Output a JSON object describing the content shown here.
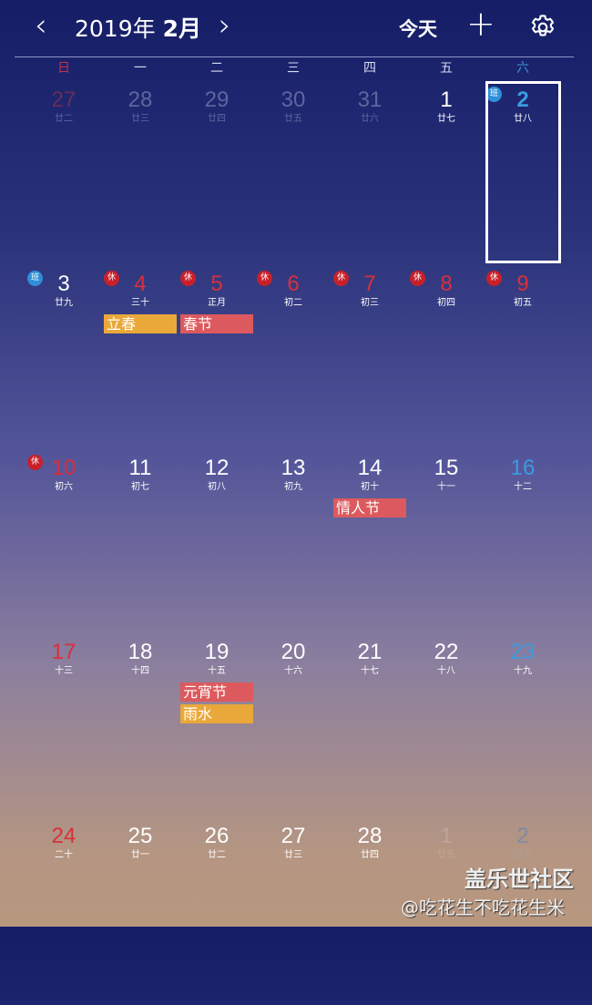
{
  "header": {
    "prev_icon": "chevron-left-icon",
    "year_text": "2019年",
    "month_text": "2月",
    "next_icon": "chevron-right-icon",
    "today_label": "今天",
    "add_icon": "plus-icon",
    "settings_icon": "gear-icon"
  },
  "weekdays": [
    "日",
    "一",
    "二",
    "三",
    "四",
    "五",
    "六"
  ],
  "colors": {
    "sunday": "#e0323c",
    "saturday": "#3b9be0",
    "holiday": "#d8303a",
    "work_badge": "#2f8fd8",
    "rest_badge": "#c8202a",
    "event_orange": "#eaa83a",
    "event_red": "#dc5a5e"
  },
  "weeks": [
    [
      {
        "d": "27",
        "l": "廿二",
        "t": "other-sun"
      },
      {
        "d": "28",
        "l": "廿三",
        "t": "other"
      },
      {
        "d": "29",
        "l": "廿四",
        "t": "other"
      },
      {
        "d": "30",
        "l": "廿五",
        "t": "other"
      },
      {
        "d": "31",
        "l": "廿六",
        "t": "other"
      },
      {
        "d": "1",
        "l": "廿七",
        "t": "normal"
      },
      {
        "d": "2",
        "l": "廿八",
        "t": "sat",
        "badge": "班",
        "selected": true
      }
    ],
    [
      {
        "d": "3",
        "l": "廿九",
        "t": "normal",
        "badge": "班"
      },
      {
        "d": "4",
        "l": "三十",
        "t": "holiday",
        "badge": "休",
        "ev": [
          {
            "text": "立春",
            "c": "orange"
          }
        ]
      },
      {
        "d": "5",
        "l": "正月",
        "t": "holiday",
        "badge": "休",
        "ev": [
          {
            "text": "春节",
            "c": "red"
          }
        ]
      },
      {
        "d": "6",
        "l": "初二",
        "t": "holiday",
        "badge": "休"
      },
      {
        "d": "7",
        "l": "初三",
        "t": "holiday",
        "badge": "休"
      },
      {
        "d": "8",
        "l": "初四",
        "t": "holiday",
        "badge": "休"
      },
      {
        "d": "9",
        "l": "初五",
        "t": "holiday",
        "badge": "休"
      }
    ],
    [
      {
        "d": "10",
        "l": "初六",
        "t": "holiday",
        "badge": "休"
      },
      {
        "d": "11",
        "l": "初七",
        "t": "normal"
      },
      {
        "d": "12",
        "l": "初八",
        "t": "normal"
      },
      {
        "d": "13",
        "l": "初九",
        "t": "normal"
      },
      {
        "d": "14",
        "l": "初十",
        "t": "normal",
        "ev": [
          {
            "text": "情人节",
            "c": "red"
          }
        ]
      },
      {
        "d": "15",
        "l": "十一",
        "t": "normal"
      },
      {
        "d": "16",
        "l": "十二",
        "t": "sat"
      }
    ],
    [
      {
        "d": "17",
        "l": "十三",
        "t": "sun"
      },
      {
        "d": "18",
        "l": "十四",
        "t": "normal"
      },
      {
        "d": "19",
        "l": "十五",
        "t": "normal",
        "ev": [
          {
            "text": "元宵节",
            "c": "red"
          },
          {
            "text": "雨水",
            "c": "orange"
          }
        ]
      },
      {
        "d": "20",
        "l": "十六",
        "t": "normal"
      },
      {
        "d": "21",
        "l": "十七",
        "t": "normal"
      },
      {
        "d": "22",
        "l": "十八",
        "t": "normal"
      },
      {
        "d": "23",
        "l": "十九",
        "t": "sat"
      }
    ],
    [
      {
        "d": "24",
        "l": "二十",
        "t": "sun"
      },
      {
        "d": "25",
        "l": "廿一",
        "t": "normal"
      },
      {
        "d": "26",
        "l": "廿二",
        "t": "normal"
      },
      {
        "d": "27",
        "l": "廿三",
        "t": "normal"
      },
      {
        "d": "28",
        "l": "廿四",
        "t": "normal"
      },
      {
        "d": "1",
        "l": "廿五",
        "t": "other"
      },
      {
        "d": "2",
        "l": "廿六",
        "t": "other-sat"
      }
    ]
  ],
  "watermark": {
    "line1": "盖乐世社区",
    "line2": "@吃花生不吃花生米"
  }
}
